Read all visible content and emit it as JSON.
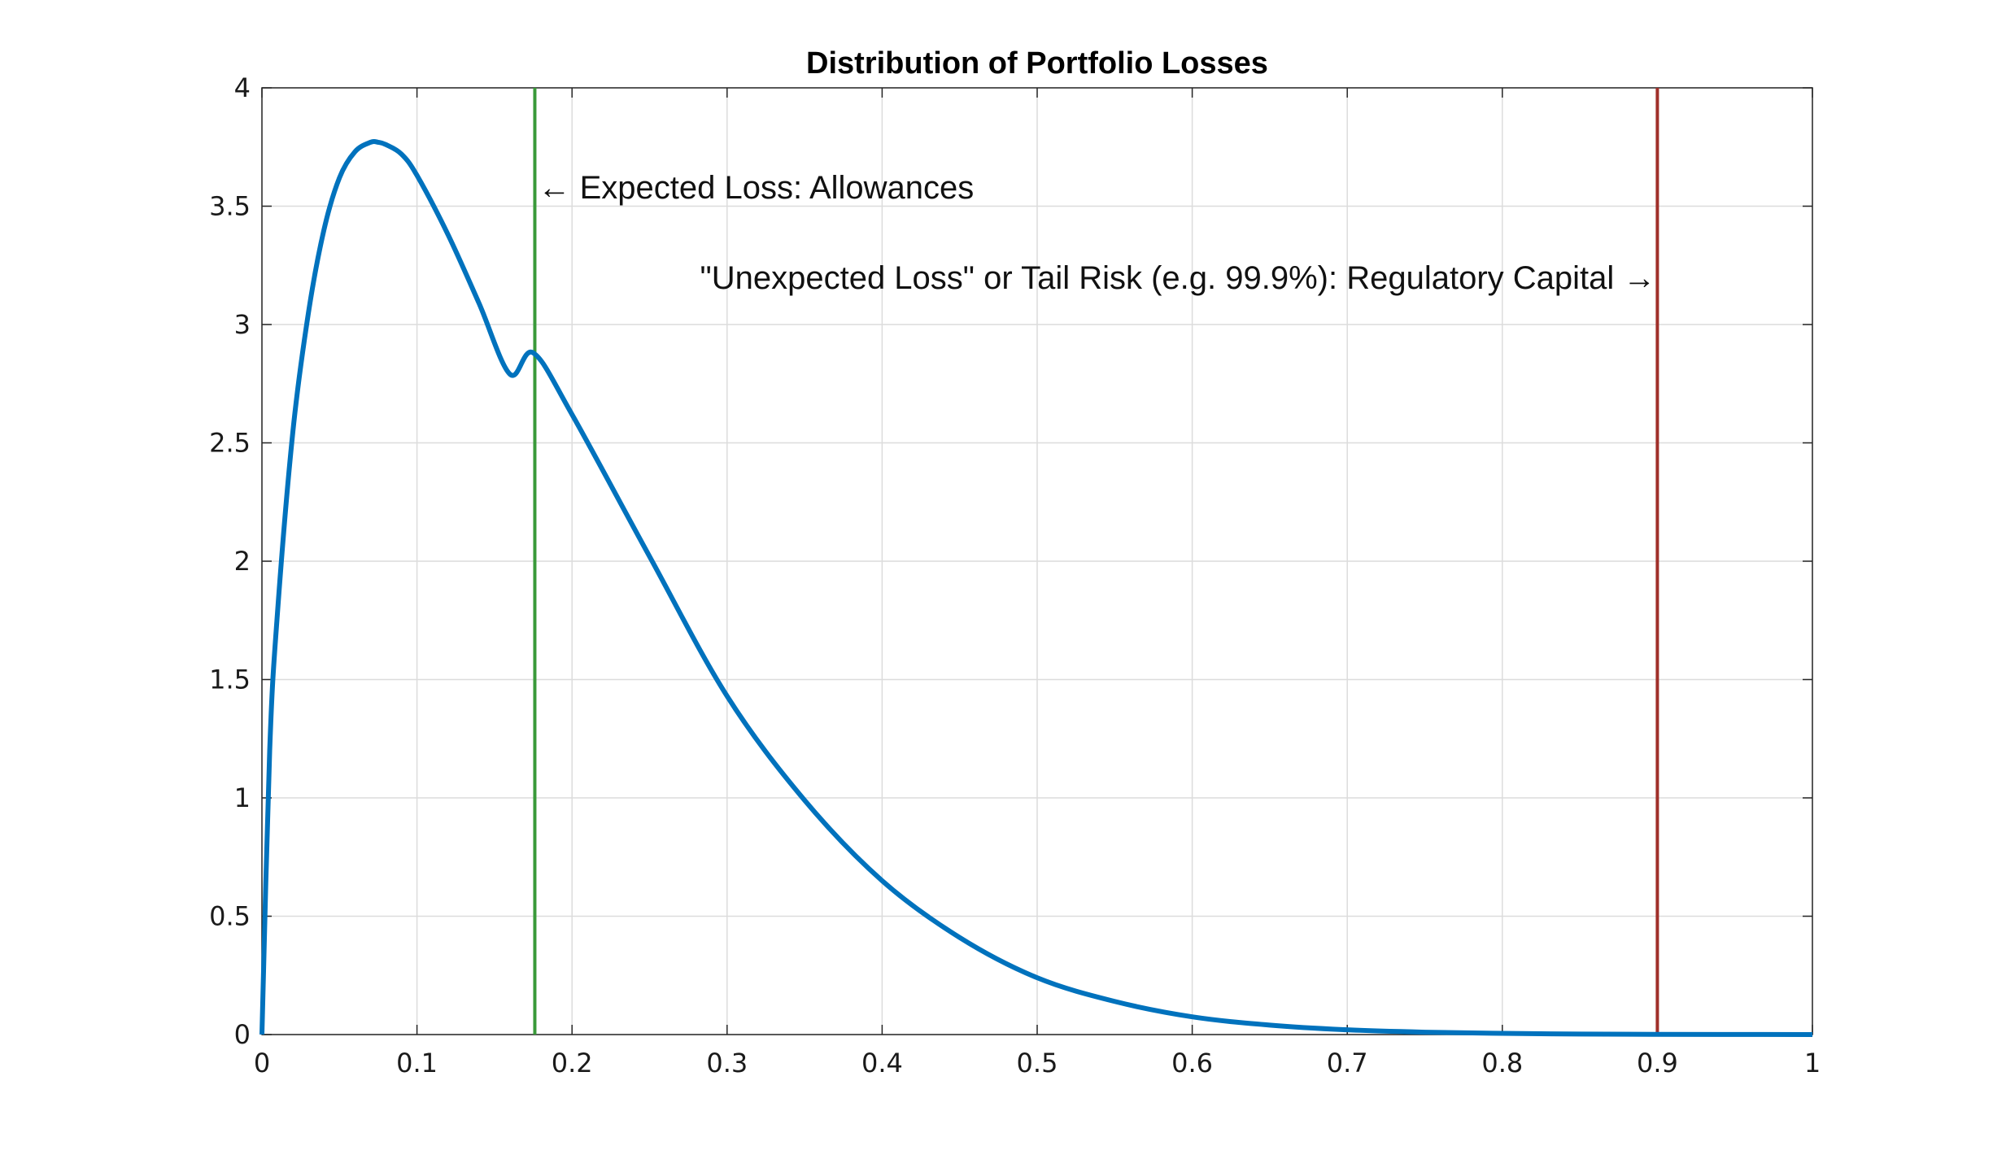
{
  "chart_data": {
    "type": "line",
    "title": "Distribution of Portfolio Losses",
    "xlabel": "",
    "ylabel": "",
    "xlim": [
      0,
      1
    ],
    "ylim": [
      0,
      4
    ],
    "grid": true,
    "x_ticks": [
      "0",
      "0.1",
      "0.2",
      "0.3",
      "0.4",
      "0.5",
      "0.6",
      "0.7",
      "0.8",
      "0.9",
      "1"
    ],
    "y_ticks": [
      "0",
      "0.5",
      "1",
      "1.5",
      "2",
      "2.5",
      "3",
      "3.5",
      "4"
    ],
    "series": [
      {
        "color": "#0072BD",
        "x": [
          0,
          0.005,
          0.01,
          0.02,
          0.03,
          0.04,
          0.05,
          0.06,
          0.07,
          0.075,
          0.08,
          0.09,
          0.1,
          0.12,
          0.14,
          0.16,
          0.175,
          0.2,
          0.25,
          0.3,
          0.35,
          0.4,
          0.45,
          0.5,
          0.55,
          0.6,
          0.65,
          0.7,
          0.75,
          0.8,
          0.85,
          0.9,
          0.95,
          1.0
        ],
        "y": [
          0,
          1.2,
          1.78,
          2.55,
          3.05,
          3.4,
          3.62,
          3.73,
          3.77,
          3.77,
          3.76,
          3.72,
          3.63,
          3.38,
          3.09,
          2.79,
          2.88,
          2.62,
          2.02,
          1.43,
          0.99,
          0.65,
          0.41,
          0.24,
          0.14,
          0.075,
          0.04,
          0.02,
          0.01,
          0.005,
          0.002,
          0.001,
          0.0005,
          0
        ]
      }
    ],
    "vertical_lines": [
      {
        "x": 0.176,
        "color": "#3A9A3A"
      },
      {
        "x": 0.9,
        "color": "#A0302A"
      }
    ],
    "annotations": [
      {
        "text": "← Expected Loss: Allowances",
        "x": 0.176,
        "y": 3.58
      },
      {
        "text": "\"Unexpected Loss\" or Tail Risk (e.g. 99.9%): Regulatory Capital →",
        "x": 0.9,
        "y": 3.2
      }
    ]
  }
}
